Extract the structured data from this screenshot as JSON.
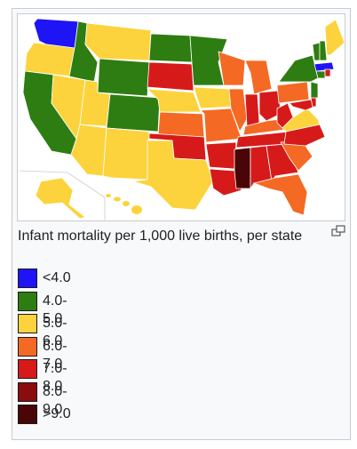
{
  "caption": "Infant mortality per 1,000 live births, per state",
  "legend": [
    {
      "label": "<4.0",
      "color": "#1f14f5"
    },
    {
      "label": "4.0-5.0",
      "color": "#2e7d12"
    },
    {
      "label": "5.0-6.0",
      "color": "#fcd33c"
    },
    {
      "label": "6.0-7.0",
      "color": "#f46a24"
    },
    {
      "label": "7.0-8.0",
      "color": "#d61a1a"
    },
    {
      "label": "8.0-9.0",
      "color": "#8a0d0d"
    },
    {
      "label": ">9.0",
      "color": "#4a0606"
    }
  ],
  "icons": {
    "magnify": "magnify-icon"
  }
}
